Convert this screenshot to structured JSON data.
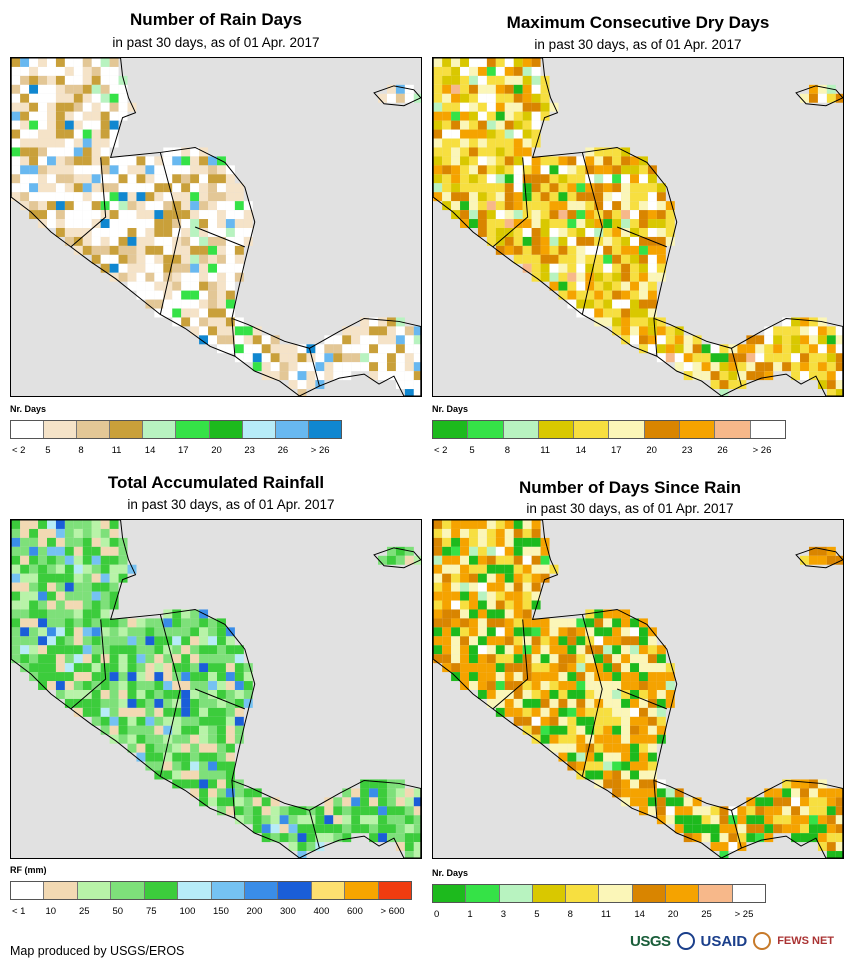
{
  "panels": [
    {
      "title": "Number of Rain Days",
      "subtitle": "in past 30 days, as of 01 Apr. 2017",
      "legend_title": "Nr. Days",
      "legend_colors": [
        "#ffffff",
        "#f5e3c8",
        "#e3c796",
        "#c9a03a",
        "#b8f3c0",
        "#35e247",
        "#1dba1d",
        "#b7ecf8",
        "#68b8f0",
        "#1087d0"
      ],
      "legend_ticks": [
        "< 2",
        "5",
        "8",
        "11",
        "14",
        "17",
        "20",
        "23",
        "26",
        "> 26"
      ],
      "land_palette": [
        "#ffffff",
        "#ffffff",
        "#ffffff",
        "#f5e3c8",
        "#f5e3c8",
        "#e3c796",
        "#c9a03a"
      ],
      "accent_palette": [
        "#35e247",
        "#68b8f0",
        "#1087d0",
        "#b8f3c0"
      ]
    },
    {
      "title": "Maximum Consecutive Dry Days",
      "subtitle": "in past 30 days, as of 01 Apr. 2017",
      "legend_title": "Nr. Days",
      "legend_colors": [
        "#1dba1d",
        "#35e247",
        "#b8f3c0",
        "#d9c800",
        "#f7df40",
        "#fbf6b8",
        "#d98500",
        "#f5a300",
        "#f7b88a",
        "#ffffff"
      ],
      "legend_ticks": [
        "< 2",
        "5",
        "8",
        "11",
        "14",
        "17",
        "20",
        "23",
        "26",
        "> 26"
      ],
      "land_palette": [
        "#f7df40",
        "#f7df40",
        "#fbf6b8",
        "#d9c800",
        "#d98500",
        "#f5a300",
        "#ffffff"
      ],
      "accent_palette": [
        "#b8f3c0",
        "#35e247",
        "#f7b88a",
        "#1dba1d"
      ]
    },
    {
      "title": "Total Accumulated Rainfall",
      "subtitle": "in past 30 days, as of 01 Apr. 2017",
      "legend_title": "RF (mm)",
      "legend_colors": [
        "#ffffff",
        "#f2d9b3",
        "#b8f3a8",
        "#7ee07a",
        "#3ccc3c",
        "#b7ecf8",
        "#75c2f2",
        "#3a8de8",
        "#1a5ed8",
        "#fde070",
        "#f7a500",
        "#f03c10"
      ],
      "legend_ticks": [
        "< 1",
        "10",
        "25",
        "50",
        "75",
        "100",
        "150",
        "200",
        "300",
        "400",
        "600",
        "> 600"
      ],
      "land_palette": [
        "#7ee07a",
        "#7ee07a",
        "#3ccc3c",
        "#b8f3a8",
        "#f2d9b3",
        "#3ccc3c"
      ],
      "accent_palette": [
        "#75c2f2",
        "#3a8de8",
        "#b7ecf8",
        "#1a5ed8"
      ]
    },
    {
      "title": "Number of Days Since Rain",
      "subtitle": "in past 30 days, as of 01 Apr. 2017",
      "legend_title": "Nr. Days",
      "legend_colors": [
        "#1dba1d",
        "#35e247",
        "#b8f3c0",
        "#d9c800",
        "#f7df40",
        "#fbf6b8",
        "#d98500",
        "#f5a300",
        "#f7b88a",
        "#ffffff"
      ],
      "legend_ticks": [
        "0",
        "1",
        "3",
        "5",
        "8",
        "11",
        "14",
        "20",
        "25",
        "> 25"
      ],
      "land_palette": [
        "#f5a300",
        "#f5a300",
        "#d98500",
        "#fbf6b8",
        "#1dba1d",
        "#f7df40"
      ],
      "accent_palette": [
        "#1dba1d",
        "#35e247",
        "#b8f3c0",
        "#ffffff"
      ]
    }
  ],
  "footer": "Map produced by USGS/EROS",
  "logos": {
    "usgs": "USGS",
    "usaid": "USAID",
    "fews": "FEWS NET"
  }
}
